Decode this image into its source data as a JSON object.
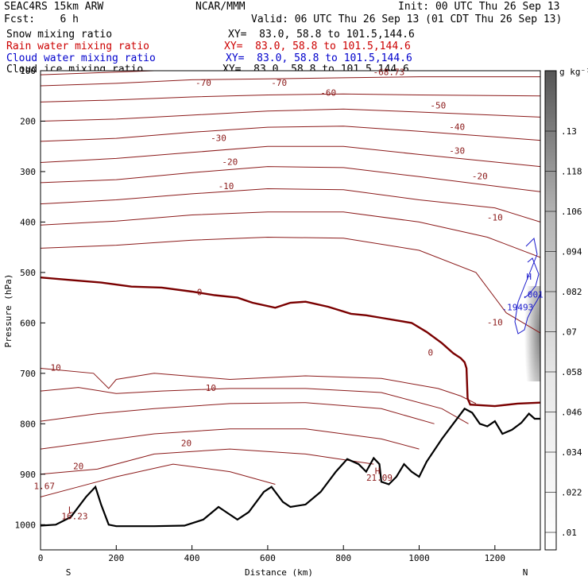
{
  "header": {
    "model": "SEAC4RS 15km ARW",
    "org": "NCAR/MMM",
    "init": "Init: 00 UTC Thu 26 Sep 13",
    "fcst": "Fcst:    6 h",
    "valid": "Valid: 06 UTC Thu 26 Sep 13 (01 CDT Thu 26 Sep 13)",
    "fields": [
      {
        "name": "Snow mixing ratio",
        "xy": "XY=  83.0, 58.8 to 101.5,144.6",
        "color": "#000000"
      },
      {
        "name": "Rain water mixing ratio",
        "xy": "XY=  83.0, 58.8 to 101.5,144.6",
        "color": "#cc0000"
      },
      {
        "name": "Cloud water mixing ratio",
        "xy": "XY=  83.0, 58.8 to 101.5,144.6",
        "color": "#0000cc"
      },
      {
        "name": "Cloud ice mixing ratio",
        "xy": "XY=  83.0, 58.8 to 101.5,144.6",
        "color": "#000000"
      }
    ]
  },
  "chart_data": {
    "type": "cross-section contour",
    "xlabel": "Distance (km)",
    "ylabel": "Pressure (hPa)",
    "xlim": [
      0,
      1320
    ],
    "ylim": [
      1050,
      100
    ],
    "x_ticks": [
      "0",
      "200",
      "400",
      "600",
      "800",
      "1000",
      "1200"
    ],
    "y_ticks": [
      "100",
      "200",
      "300",
      "400",
      "500",
      "600",
      "700",
      "800",
      "900",
      "1000"
    ],
    "end_labels": {
      "left": "S",
      "right": "N"
    },
    "temperature_contour_labels": [
      "-70",
      "-70",
      "-60",
      "-50",
      "-40",
      "-30",
      "-30",
      "-20",
      "-20",
      "-10",
      "-10",
      "0",
      "0",
      "-10",
      "10",
      "10",
      "20",
      "20"
    ],
    "extrema_labels": [
      "-68.73",
      "1.67",
      "L",
      "16.23",
      "H",
      "21.09",
      "H",
      ".19493",
      ".001"
    ],
    "terrain": [
      [
        0,
        1002
      ],
      [
        40,
        1000
      ],
      [
        80,
        985
      ],
      [
        120,
        945
      ],
      [
        145,
        925
      ],
      [
        160,
        960
      ],
      [
        180,
        1000
      ],
      [
        200,
        1003
      ],
      [
        300,
        1003
      ],
      [
        380,
        1002
      ],
      [
        430,
        990
      ],
      [
        470,
        965
      ],
      [
        490,
        975
      ],
      [
        520,
        990
      ],
      [
        550,
        975
      ],
      [
        590,
        935
      ],
      [
        610,
        925
      ],
      [
        640,
        955
      ],
      [
        660,
        965
      ],
      [
        700,
        960
      ],
      [
        740,
        935
      ],
      [
        780,
        895
      ],
      [
        810,
        870
      ],
      [
        840,
        880
      ],
      [
        860,
        895
      ],
      [
        880,
        868
      ],
      [
        895,
        880
      ],
      [
        900,
        915
      ],
      [
        920,
        920
      ],
      [
        940,
        905
      ],
      [
        960,
        880
      ],
      [
        980,
        895
      ],
      [
        1000,
        905
      ],
      [
        1020,
        875
      ],
      [
        1060,
        830
      ],
      [
        1090,
        800
      ],
      [
        1120,
        770
      ],
      [
        1140,
        778
      ],
      [
        1160,
        800
      ],
      [
        1180,
        805
      ],
      [
        1200,
        795
      ],
      [
        1220,
        820
      ],
      [
        1245,
        812
      ],
      [
        1270,
        798
      ],
      [
        1290,
        780
      ],
      [
        1305,
        790
      ],
      [
        1320,
        790
      ]
    ],
    "zero_isotherm": [
      [
        0,
        510
      ],
      [
        80,
        515
      ],
      [
        160,
        520
      ],
      [
        240,
        528
      ],
      [
        320,
        530
      ],
      [
        400,
        538
      ],
      [
        460,
        545
      ],
      [
        520,
        550
      ],
      [
        560,
        560
      ],
      [
        620,
        570
      ],
      [
        660,
        560
      ],
      [
        700,
        558
      ],
      [
        760,
        568
      ],
      [
        820,
        582
      ],
      [
        860,
        585
      ],
      [
        900,
        590
      ],
      [
        940,
        595
      ],
      [
        980,
        600
      ],
      [
        1020,
        618
      ],
      [
        1060,
        640
      ],
      [
        1090,
        660
      ],
      [
        1110,
        670
      ],
      [
        1120,
        678
      ],
      [
        1125,
        690
      ],
      [
        1128,
        750
      ],
      [
        1135,
        762
      ],
      [
        1200,
        765
      ],
      [
        1260,
        760
      ],
      [
        1320,
        758
      ]
    ],
    "colorbar": {
      "unit": "g kg⁻¹",
      "ticks": [
        ".01",
        ".022",
        ".034",
        ".046",
        ".058",
        ".07",
        ".082",
        ".094",
        ".106",
        ".118",
        ".13"
      ]
    }
  }
}
